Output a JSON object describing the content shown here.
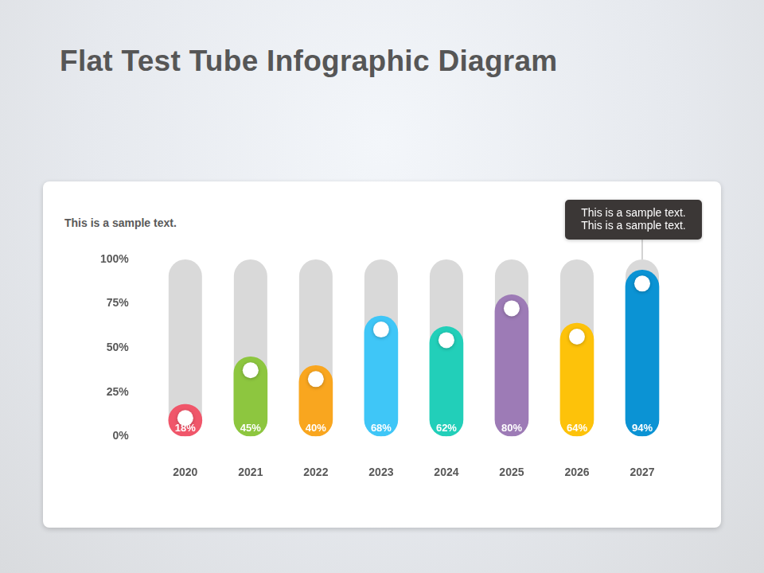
{
  "chart_data": {
    "type": "bar",
    "title": "Flat Test Tube Infographic Diagram",
    "subtitle": "This is a sample text.",
    "annotations": [
      {
        "category": "2027",
        "text": "This is a sample text. This is a sample text."
      }
    ],
    "categories": [
      "2020",
      "2021",
      "2022",
      "2023",
      "2024",
      "2025",
      "2026",
      "2027"
    ],
    "values": [
      18,
      45,
      40,
      68,
      62,
      80,
      64,
      94
    ],
    "value_labels": [
      "18%",
      "45%",
      "40%",
      "68%",
      "62%",
      "80%",
      "64%",
      "94%"
    ],
    "colors": [
      "#f0566a",
      "#8dc63f",
      "#f9a61f",
      "#3fc6f7",
      "#22cfb9",
      "#9d7bb6",
      "#fdc20a",
      "#0b93d4"
    ],
    "ylim": [
      0,
      100
    ],
    "yticks": [
      {
        "value": 0,
        "label": "0%"
      },
      {
        "value": 25,
        "label": "25%"
      },
      {
        "value": 50,
        "label": "50%"
      },
      {
        "value": 75,
        "label": "75%"
      },
      {
        "value": 100,
        "label": "100%"
      }
    ],
    "grid": false,
    "data_labels": true
  }
}
